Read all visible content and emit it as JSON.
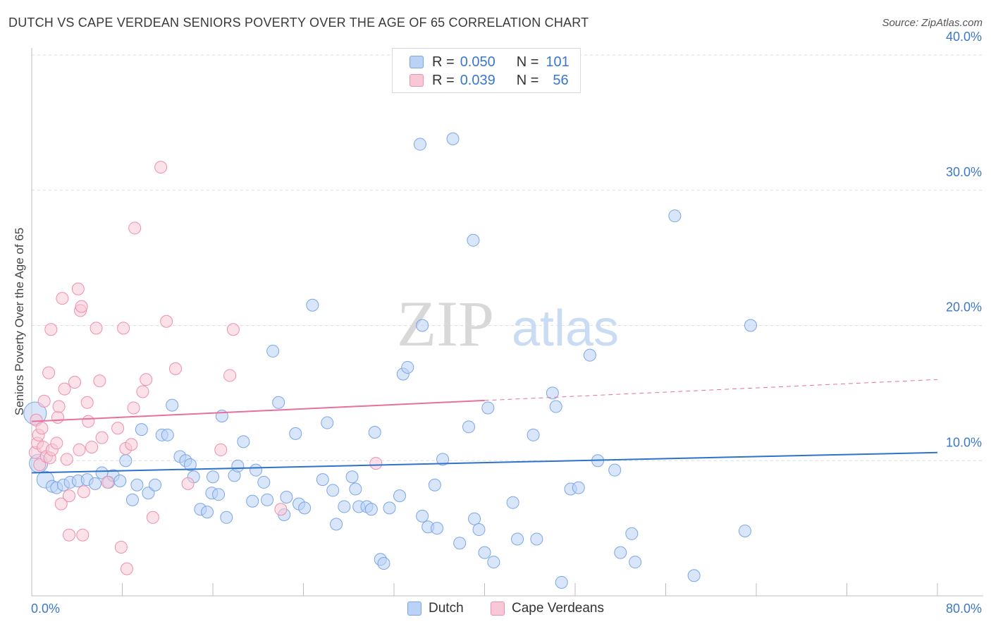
{
  "title": "DUTCH VS CAPE VERDEAN SENIORS POVERTY OVER THE AGE OF 65 CORRELATION CHART",
  "source": "Source: ZipAtlas.com",
  "watermark": {
    "zip": "ZIP",
    "atlas": "atlas"
  },
  "legend": {
    "rows": [
      {
        "r_label": "R =",
        "r_value": "0.050",
        "n_label": "N =",
        "n_value": "101"
      },
      {
        "r_label": "R =",
        "r_value": "0.039",
        "n_label": "N =",
        "n_value": "56"
      }
    ]
  },
  "bottom_legend": {
    "dutch": "Dutch",
    "cape": "Cape Verdeans"
  },
  "colors": {
    "blue": "#7aa6e8",
    "blue_fill": "#b9d2f5",
    "blue_line": "#2f72cc",
    "pink": "#ee8fae",
    "pink_fill": "#f8c8d6",
    "pink_line": "#e8709a",
    "axis_text": "#3b78c9"
  },
  "chart_data": {
    "type": "scatter",
    "ylabel": "Seniors Poverty Over the Age of 65",
    "xlim": [
      0,
      80
    ],
    "ylim": [
      0,
      40
    ],
    "x_tick_labels": {
      "0": "0.0%",
      "80": "80.0%"
    },
    "y_ticks": [
      10,
      20,
      30,
      40
    ],
    "y_tick_labels": [
      "10.0%",
      "20.0%",
      "30.0%",
      "40.0%"
    ],
    "grid": true,
    "series": [
      {
        "name": "Dutch",
        "trend": {
          "x0": 0,
          "y0": 9.1,
          "x1": 80,
          "y1": 10.6,
          "dashed_from": null
        },
        "points": [
          [
            0.3,
            13.5
          ],
          [
            0.6,
            9.8
          ],
          [
            1.2,
            8.6
          ],
          [
            1.8,
            8.1
          ],
          [
            2.2,
            8.0
          ],
          [
            2.8,
            8.2
          ],
          [
            3.4,
            8.4
          ],
          [
            4.1,
            8.5
          ],
          [
            4.9,
            8.6
          ],
          [
            5.6,
            8.3
          ],
          [
            6.2,
            9.1
          ],
          [
            6.8,
            8.4
          ],
          [
            7.2,
            8.9
          ],
          [
            7.8,
            8.5
          ],
          [
            8.3,
            10.0
          ],
          [
            8.9,
            7.1
          ],
          [
            9.3,
            8.2
          ],
          [
            9.7,
            12.3
          ],
          [
            10.3,
            7.6
          ],
          [
            10.9,
            8.2
          ],
          [
            11.5,
            11.9
          ],
          [
            12.0,
            11.9
          ],
          [
            12.4,
            14.1
          ],
          [
            13.1,
            10.3
          ],
          [
            13.6,
            10.0
          ],
          [
            14.0,
            9.7
          ],
          [
            14.3,
            8.8
          ],
          [
            14.9,
            6.4
          ],
          [
            15.5,
            6.2
          ],
          [
            15.9,
            7.6
          ],
          [
            16.0,
            8.8
          ],
          [
            16.5,
            7.5
          ],
          [
            16.8,
            13.3
          ],
          [
            17.2,
            5.8
          ],
          [
            17.9,
            8.9
          ],
          [
            18.2,
            9.6
          ],
          [
            18.7,
            11.4
          ],
          [
            19.5,
            7.0
          ],
          [
            19.8,
            9.3
          ],
          [
            20.5,
            8.4
          ],
          [
            20.8,
            7.1
          ],
          [
            21.3,
            18.1
          ],
          [
            21.8,
            14.3
          ],
          [
            22.3,
            6.0
          ],
          [
            22.5,
            7.3
          ],
          [
            23.3,
            12.0
          ],
          [
            23.6,
            6.8
          ],
          [
            24.1,
            6.5
          ],
          [
            24.8,
            21.5
          ],
          [
            25.7,
            8.6
          ],
          [
            26.1,
            12.8
          ],
          [
            26.6,
            7.8
          ],
          [
            26.9,
            5.3
          ],
          [
            27.6,
            6.6
          ],
          [
            28.3,
            8.8
          ],
          [
            28.6,
            7.9
          ],
          [
            28.9,
            6.6
          ],
          [
            29.6,
            6.6
          ],
          [
            30.0,
            6.4
          ],
          [
            30.3,
            12.1
          ],
          [
            30.8,
            2.7
          ],
          [
            31.1,
            2.4
          ],
          [
            31.6,
            6.5
          ],
          [
            32.5,
            7.4
          ],
          [
            32.8,
            16.4
          ],
          [
            33.2,
            16.9
          ],
          [
            34.3,
            33.4
          ],
          [
            34.5,
            20.0
          ],
          [
            34.5,
            5.9
          ],
          [
            35.0,
            5.1
          ],
          [
            35.6,
            8.2
          ],
          [
            35.8,
            5.0
          ],
          [
            36.3,
            10.1
          ],
          [
            37.8,
            3.9
          ],
          [
            38.6,
            12.5
          ],
          [
            39.0,
            26.3
          ],
          [
            39.1,
            5.7
          ],
          [
            39.5,
            4.9
          ],
          [
            40.0,
            3.2
          ],
          [
            40.3,
            13.9
          ],
          [
            40.8,
            2.5
          ],
          [
            42.5,
            6.9
          ],
          [
            42.9,
            4.2
          ],
          [
            44.3,
            11.9
          ],
          [
            44.6,
            4.2
          ],
          [
            46.0,
            15.0
          ],
          [
            46.3,
            14.0
          ],
          [
            46.8,
            1.0
          ],
          [
            47.6,
            7.9
          ],
          [
            48.3,
            8.0
          ],
          [
            49.3,
            17.8
          ],
          [
            50.0,
            10.0
          ],
          [
            51.5,
            9.3
          ],
          [
            52.0,
            3.2
          ],
          [
            53.0,
            4.6
          ],
          [
            53.3,
            2.5
          ],
          [
            56.8,
            28.1
          ],
          [
            58.5,
            1.5
          ],
          [
            63.0,
            4.8
          ],
          [
            63.5,
            20.0
          ],
          [
            37.2,
            33.8
          ]
        ]
      },
      {
        "name": "Cape Verdeans",
        "trend": {
          "x0": 0,
          "y0": 12.9,
          "x1": 80,
          "y1": 16.0,
          "dashed_from": 40
        },
        "points": [
          [
            0.3,
            10.6
          ],
          [
            0.4,
            13.0
          ],
          [
            0.5,
            11.3
          ],
          [
            0.6,
            11.9
          ],
          [
            0.7,
            9.7
          ],
          [
            0.9,
            12.4
          ],
          [
            1.0,
            11.0
          ],
          [
            1.1,
            14.4
          ],
          [
            1.3,
            10.3
          ],
          [
            1.5,
            16.5
          ],
          [
            1.6,
            10.2
          ],
          [
            1.7,
            19.7
          ],
          [
            1.8,
            10.8
          ],
          [
            2.2,
            11.3
          ],
          [
            2.3,
            13.2
          ],
          [
            2.4,
            14.0
          ],
          [
            2.6,
            6.8
          ],
          [
            2.7,
            22.0
          ],
          [
            2.9,
            15.3
          ],
          [
            3.1,
            10.1
          ],
          [
            3.3,
            7.4
          ],
          [
            3.3,
            4.5
          ],
          [
            3.8,
            15.8
          ],
          [
            4.1,
            22.7
          ],
          [
            4.2,
            10.8
          ],
          [
            4.3,
            21.1
          ],
          [
            4.4,
            21.4
          ],
          [
            4.5,
            4.5
          ],
          [
            4.6,
            7.7
          ],
          [
            4.9,
            14.3
          ],
          [
            5.0,
            12.9
          ],
          [
            5.3,
            11.0
          ],
          [
            5.7,
            19.8
          ],
          [
            6.0,
            15.9
          ],
          [
            6.2,
            11.7
          ],
          [
            6.7,
            8.4
          ],
          [
            7.6,
            12.4
          ],
          [
            7.9,
            3.6
          ],
          [
            8.1,
            19.8
          ],
          [
            8.3,
            10.9
          ],
          [
            8.4,
            2.0
          ],
          [
            8.8,
            11.2
          ],
          [
            9.0,
            13.9
          ],
          [
            9.1,
            27.2
          ],
          [
            9.8,
            15.1
          ],
          [
            10.1,
            16.0
          ],
          [
            10.7,
            5.8
          ],
          [
            11.4,
            31.7
          ],
          [
            11.9,
            20.3
          ],
          [
            12.7,
            16.8
          ],
          [
            13.8,
            8.3
          ],
          [
            16.7,
            10.8
          ],
          [
            17.5,
            16.3
          ],
          [
            17.8,
            19.7
          ],
          [
            22.0,
            6.4
          ],
          [
            30.4,
            9.8
          ]
        ]
      }
    ]
  }
}
